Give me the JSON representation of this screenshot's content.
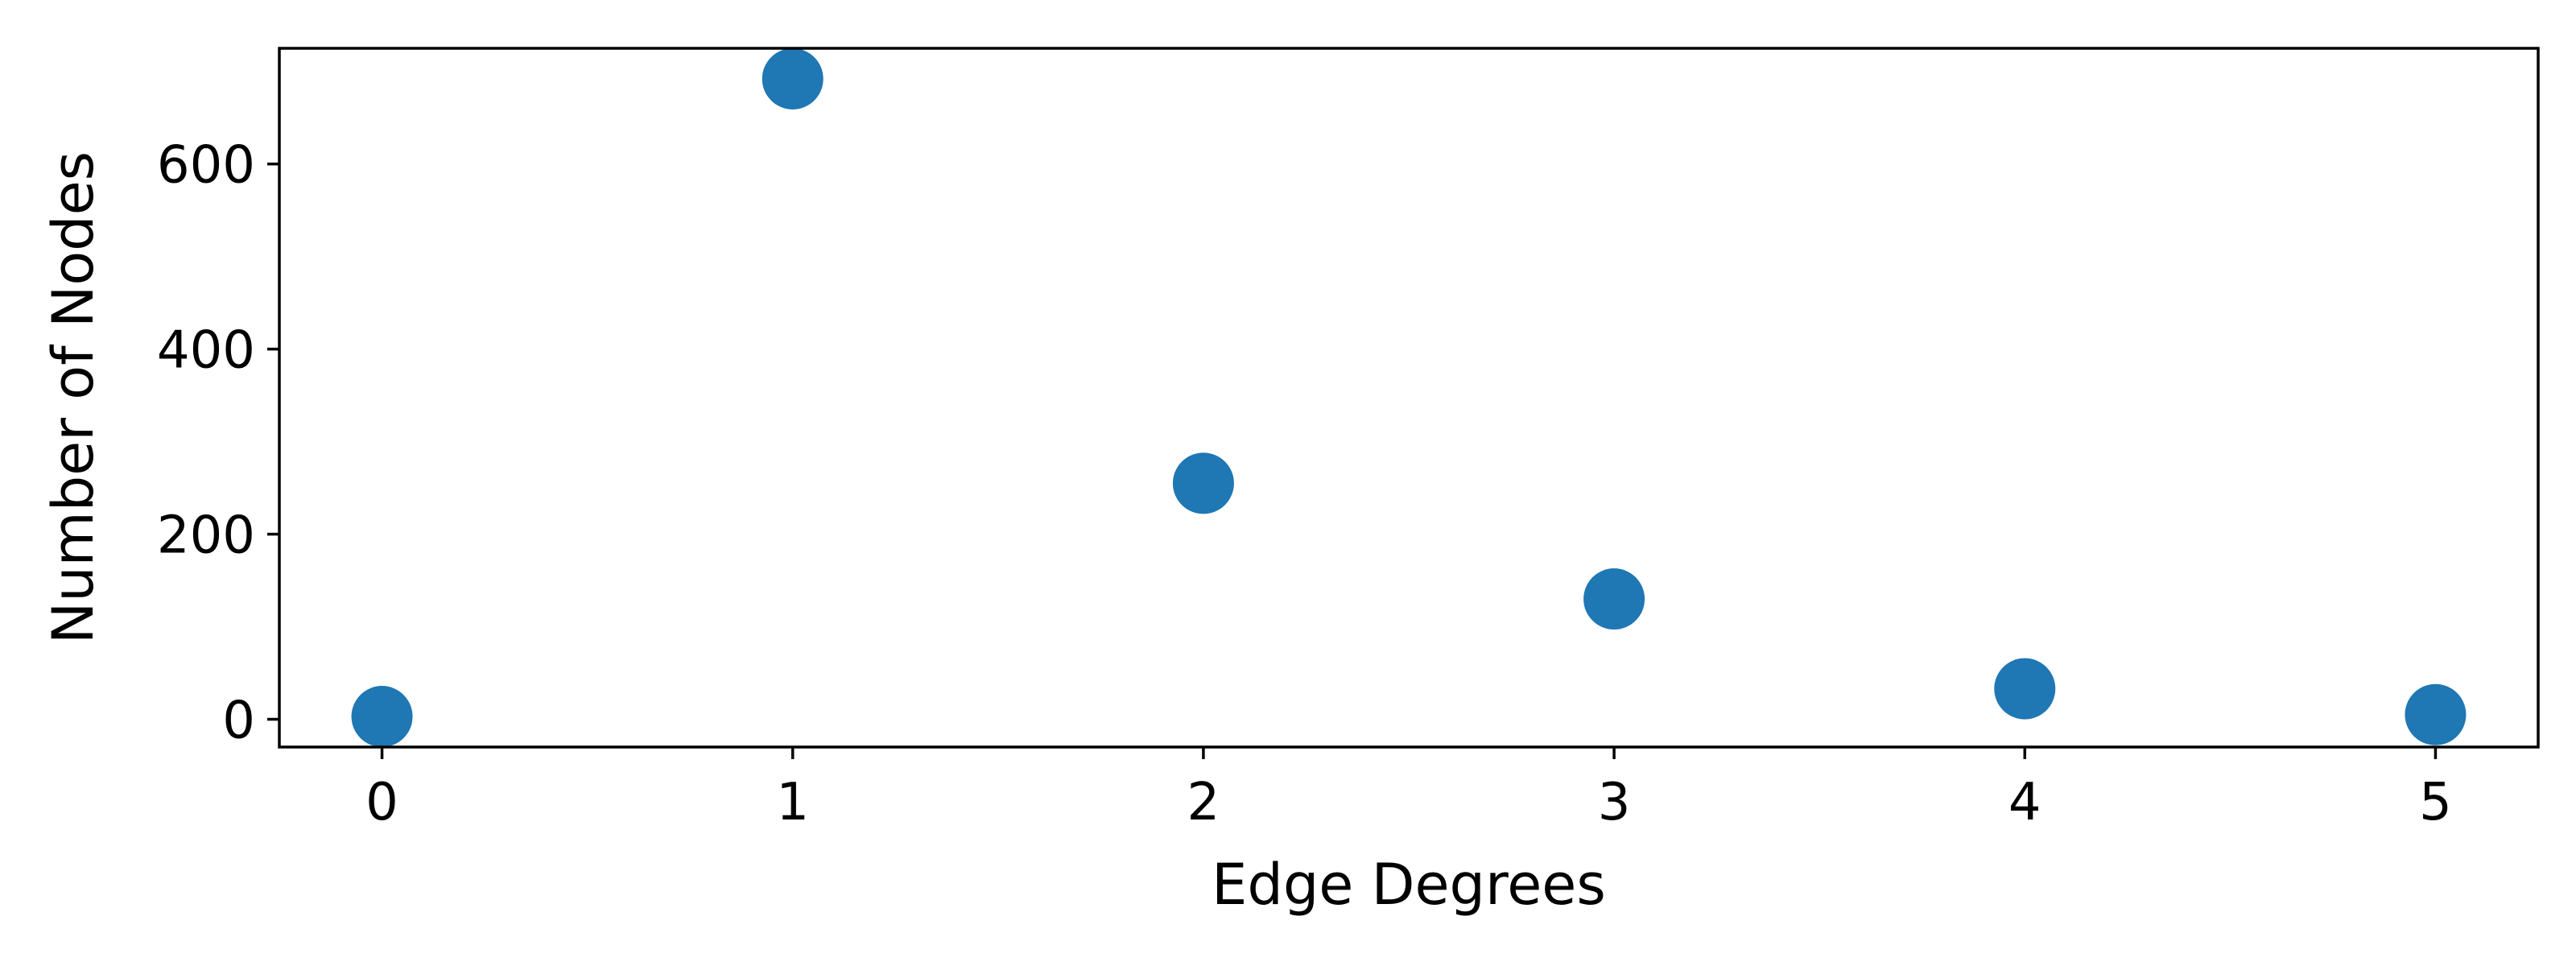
{
  "chart_data": {
    "type": "scatter",
    "title": "",
    "xlabel": "Edge Degrees",
    "ylabel": "Number of Nodes",
    "x": [
      0,
      1,
      2,
      3,
      4,
      5
    ],
    "y": [
      3,
      692,
      255,
      130,
      33,
      5
    ],
    "xticks": [
      "0",
      "1",
      "2",
      "3",
      "4",
      "5"
    ],
    "yticks": [
      "0",
      "200",
      "400",
      "600"
    ],
    "xlim": [
      -0.25,
      5.25
    ],
    "ylim": [
      -30,
      725
    ],
    "grid": false,
    "legend": "none",
    "marker_color": "#1f77b4"
  }
}
